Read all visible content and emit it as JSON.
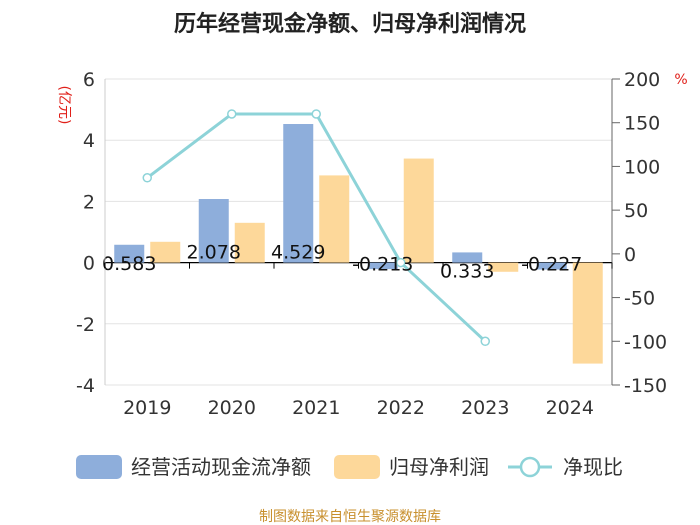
{
  "chart_data": {
    "type": "bar",
    "title": "历年经营现金净额、归母净利润情况",
    "categories": [
      "2019",
      "2020",
      "2021",
      "2022",
      "2023",
      "2024"
    ],
    "left_unit": "(亿元)",
    "right_unit": "%",
    "left_ylim": [
      -4,
      6
    ],
    "left_ticks": [
      6,
      4,
      2,
      0,
      -2,
      -4
    ],
    "right_ylim": [
      -150,
      200
    ],
    "right_ticks": [
      200,
      150,
      100,
      50,
      0,
      -50,
      -100,
      -150
    ],
    "series": [
      {
        "name": "经营活动现金流净额",
        "type": "bar",
        "axis": "left",
        "color": "#8eaedb",
        "values": [
          0.583,
          2.078,
          4.529,
          -0.213,
          0.333,
          -0.227
        ],
        "labels": [
          "0.583",
          "2.078",
          "4.529",
          "-0.213",
          "0.333",
          "-0.227"
        ]
      },
      {
        "name": "归母净利润",
        "type": "bar",
        "axis": "left",
        "color": "#fdd89a",
        "values": [
          0.68,
          1.3,
          2.85,
          3.4,
          -0.3,
          -3.3
        ]
      },
      {
        "name": "净现比",
        "type": "line",
        "axis": "right",
        "color": "#8dd3d8",
        "values": [
          87,
          160,
          160,
          -10,
          -100,
          null
        ]
      }
    ],
    "legend": [
      "经营活动现金流净额",
      "归母净利润",
      "净现比"
    ],
    "legend_position": "bottom",
    "source": "制图数据来自恒生聚源数据库",
    "grid": true
  }
}
